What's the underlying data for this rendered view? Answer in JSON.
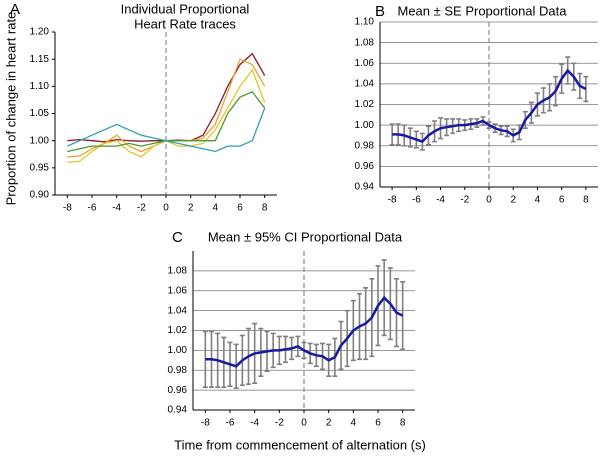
{
  "chart_data": [
    {
      "type": "line",
      "label": "A",
      "title": [
        "Individual Proportional",
        "Heart Rate traces"
      ],
      "y_label": "Proportion of change in heart rate",
      "x": [
        -8,
        -7,
        -6,
        -5,
        -4,
        -3,
        -2,
        -1,
        0,
        1,
        2,
        3,
        4,
        5,
        6,
        7,
        8
      ],
      "series": [
        {
          "color": "#8b1a2a",
          "values": [
            1.0,
            1.002,
            1.0,
            0.998,
            1.002,
            1.0,
            0.999,
            1.0,
            1.0,
            1.001,
            1.0,
            1.01,
            1.05,
            1.1,
            1.14,
            1.16,
            1.12
          ]
        },
        {
          "color": "#f0a030",
          "values": [
            0.97,
            0.972,
            0.985,
            0.995,
            1.01,
            0.99,
            0.98,
            0.99,
            1.0,
            1.0,
            1.0,
            1.005,
            1.03,
            1.09,
            1.15,
            1.14,
            1.1
          ]
        },
        {
          "color": "#e0c828",
          "values": [
            0.96,
            0.962,
            0.98,
            0.995,
            1.0,
            0.98,
            0.97,
            0.99,
            1.0,
            0.99,
            0.99,
            0.995,
            1.02,
            1.06,
            1.1,
            1.13,
            1.07
          ]
        },
        {
          "color": "#4a9a2a",
          "values": [
            0.98,
            0.985,
            0.99,
            0.99,
            0.99,
            0.995,
            0.99,
            0.995,
            1.0,
            1.0,
            1.0,
            1.0,
            1.0,
            1.05,
            1.08,
            1.09,
            1.06
          ]
        },
        {
          "color": "#30a0b0",
          "values": [
            0.99,
            1.0,
            1.01,
            1.02,
            1.03,
            1.02,
            1.01,
            1.005,
            1.0,
            0.995,
            0.99,
            0.985,
            0.98,
            0.99,
            0.99,
            1.0,
            1.06
          ]
        }
      ],
      "xlim": [
        -9,
        9
      ],
      "ylim": [
        0.9,
        1.2
      ],
      "xticks": [
        -8,
        -6,
        -4,
        -2,
        0,
        2,
        4,
        6,
        8
      ],
      "yticks": [
        {
          "value": 0.9,
          "label": "0.90"
        },
        0.95,
        {
          "value": 1.0,
          "label": "1.00"
        },
        1.05,
        {
          "value": 1.1,
          "label": "1.10"
        },
        1.15,
        {
          "value": 1.2,
          "label": "1.20"
        }
      ],
      "grid": false
    },
    {
      "type": "errorbar",
      "label": "B",
      "title": "Mean ± SE Proportional Data",
      "x": [
        -8,
        -7.5,
        -7,
        -6.5,
        -6,
        -5.5,
        -5,
        -4.5,
        -4,
        -3.5,
        -3,
        -2.5,
        -2,
        -1.5,
        -1,
        -0.5,
        0,
        0.5,
        1,
        1.5,
        2,
        2.5,
        3,
        3.5,
        4,
        4.5,
        5,
        5.5,
        6,
        6.5,
        7,
        7.5,
        8
      ],
      "series": [
        {
          "color": "#1a1aa0",
          "bar_color": "#808080",
          "values": [
            0.991,
            0.991,
            0.99,
            0.988,
            0.986,
            0.984,
            0.99,
            0.994,
            0.997,
            0.998,
            0.999,
            1.0,
            1.0,
            1.001,
            1.002,
            1.004,
            1.0,
            0.997,
            0.995,
            0.994,
            0.99,
            0.993,
            1.005,
            1.012,
            1.02,
            1.024,
            1.027,
            1.033,
            1.045,
            1.053,
            1.047,
            1.038,
            1.035
          ],
          "errors": [
            0.01,
            0.01,
            0.01,
            0.009,
            0.008,
            0.008,
            0.009,
            0.01,
            0.01,
            0.008,
            0.007,
            0.006,
            0.005,
            0.005,
            0.004,
            0.004,
            0.003,
            0.004,
            0.004,
            0.005,
            0.006,
            0.007,
            0.008,
            0.01,
            0.011,
            0.012,
            0.013,
            0.014,
            0.014,
            0.013,
            0.013,
            0.012,
            0.012
          ]
        }
      ],
      "xlim": [
        -9,
        9
      ],
      "ylim": [
        0.94,
        1.1
      ],
      "xticks": [
        -8,
        -6,
        -4,
        -2,
        0,
        2,
        4,
        6,
        8
      ],
      "yticks": [
        0.94,
        0.96,
        0.98,
        {
          "value": 1.0,
          "label": "1.00"
        },
        1.02,
        1.04,
        1.06,
        1.08,
        {
          "value": 1.1,
          "label": "1.10"
        }
      ],
      "grid": true
    },
    {
      "type": "errorbar",
      "label": "C",
      "title": "Mean ± 95% CI Proportional Data",
      "x_label": "Time from commencement of alternation (s)",
      "x": [
        -8,
        -7.5,
        -7,
        -6.5,
        -6,
        -5.5,
        -5,
        -4.5,
        -4,
        -3.5,
        -3,
        -2.5,
        -2,
        -1.5,
        -1,
        -0.5,
        0,
        0.5,
        1,
        1.5,
        2,
        2.5,
        3,
        3.5,
        4,
        4.5,
        5,
        5.5,
        6,
        6.5,
        7,
        7.5,
        8
      ],
      "series": [
        {
          "color": "#1a1aa0",
          "bar_color": "#808080",
          "values": [
            0.991,
            0.991,
            0.99,
            0.988,
            0.986,
            0.984,
            0.99,
            0.994,
            0.997,
            0.998,
            0.999,
            1.0,
            1.0,
            1.001,
            1.002,
            1.004,
            1.0,
            0.997,
            0.995,
            0.994,
            0.99,
            0.993,
            1.005,
            1.012,
            1.02,
            1.024,
            1.027,
            1.033,
            1.045,
            1.053,
            1.047,
            1.038,
            1.035
          ],
          "errors": [
            0.028,
            0.028,
            0.027,
            0.025,
            0.022,
            0.022,
            0.025,
            0.028,
            0.03,
            0.024,
            0.02,
            0.017,
            0.014,
            0.013,
            0.011,
            0.01,
            0.008,
            0.01,
            0.011,
            0.013,
            0.016,
            0.019,
            0.024,
            0.028,
            0.03,
            0.033,
            0.036,
            0.039,
            0.04,
            0.038,
            0.036,
            0.034,
            0.034
          ]
        }
      ],
      "xlim": [
        -9,
        9
      ],
      "ylim": [
        0.94,
        1.1
      ],
      "xticks": [
        -8,
        -6,
        -4,
        -2,
        0,
        2,
        4,
        6,
        8
      ],
      "yticks": [
        0.94,
        0.96,
        0.98,
        {
          "value": 1.0,
          "label": "1.00"
        },
        1.02,
        1.04,
        1.06,
        1.08
      ],
      "grid": true
    }
  ]
}
